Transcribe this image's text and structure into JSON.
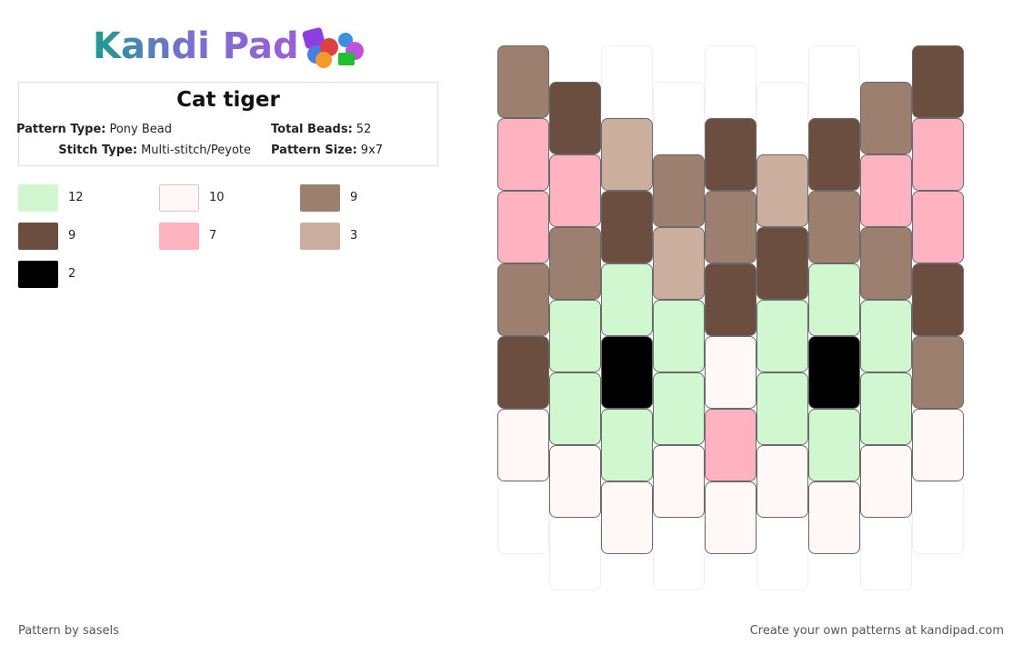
{
  "header": {
    "logo": "Kandi Pad"
  },
  "pattern": {
    "title": "Cat tiger",
    "info": [
      {
        "label": "Pattern Type:",
        "value": "Pony Bead"
      },
      {
        "label": "Total Beads:",
        "value": "52"
      },
      {
        "label": "Stitch Type:",
        "value": "Multi-stitch/Peyote"
      },
      {
        "label": "Pattern Size:",
        "value": "9x7"
      }
    ]
  },
  "legend": [
    {
      "color": "#d1f7d1",
      "count": 12
    },
    {
      "color": "#fff8f7",
      "count": 10
    },
    {
      "color": "#9c7f6e",
      "count": 9
    },
    {
      "color": "#6b4e3f",
      "count": 9
    },
    {
      "color": "#ffb3c0",
      "count": 7
    },
    {
      "color": "#ccae9e",
      "count": 3
    },
    {
      "color": "#000000",
      "count": 2
    }
  ],
  "beads": [
    [
      "#9c7f6e",
      "#ffb3c0",
      "#ffb3c0",
      "#9c7f6e",
      "#6b4e3f",
      "#fff8f7",
      null
    ],
    [
      "#6b4e3f",
      "#ffb3c0",
      "#9c7f6e",
      "#d1f7d1",
      "#d1f7d1",
      "#fff8f7",
      null
    ],
    [
      null,
      "#ccae9e",
      "#6b4e3f",
      "#d1f7d1",
      "#000000",
      "#d1f7d1",
      "#fff8f7"
    ],
    [
      null,
      "#9c7f6e",
      "#ccae9e",
      "#d1f7d1",
      "#d1f7d1",
      "#fff8f7",
      null
    ],
    [
      null,
      "#6b4e3f",
      "#9c7f6e",
      "#6b4e3f",
      "#fff8f7",
      "#ffb3c0",
      "#fff8f7"
    ],
    [
      null,
      "#ccae9e",
      "#6b4e3f",
      "#d1f7d1",
      "#d1f7d1",
      "#fff8f7",
      null
    ],
    [
      null,
      "#6b4e3f",
      "#9c7f6e",
      "#d1f7d1",
      "#000000",
      "#d1f7d1",
      "#fff8f7"
    ],
    [
      "#9c7f6e",
      "#ffb3c0",
      "#9c7f6e",
      "#d1f7d1",
      "#d1f7d1",
      "#fff8f7",
      null
    ],
    [
      "#6b4e3f",
      "#ffb3c0",
      "#ffb3c0",
      "#6b4e3f",
      "#9c7f6e",
      "#fff8f7",
      null
    ]
  ],
  "footer": {
    "credit": "Pattern by sasels",
    "promo": "Create your own patterns at kandipad.com"
  }
}
